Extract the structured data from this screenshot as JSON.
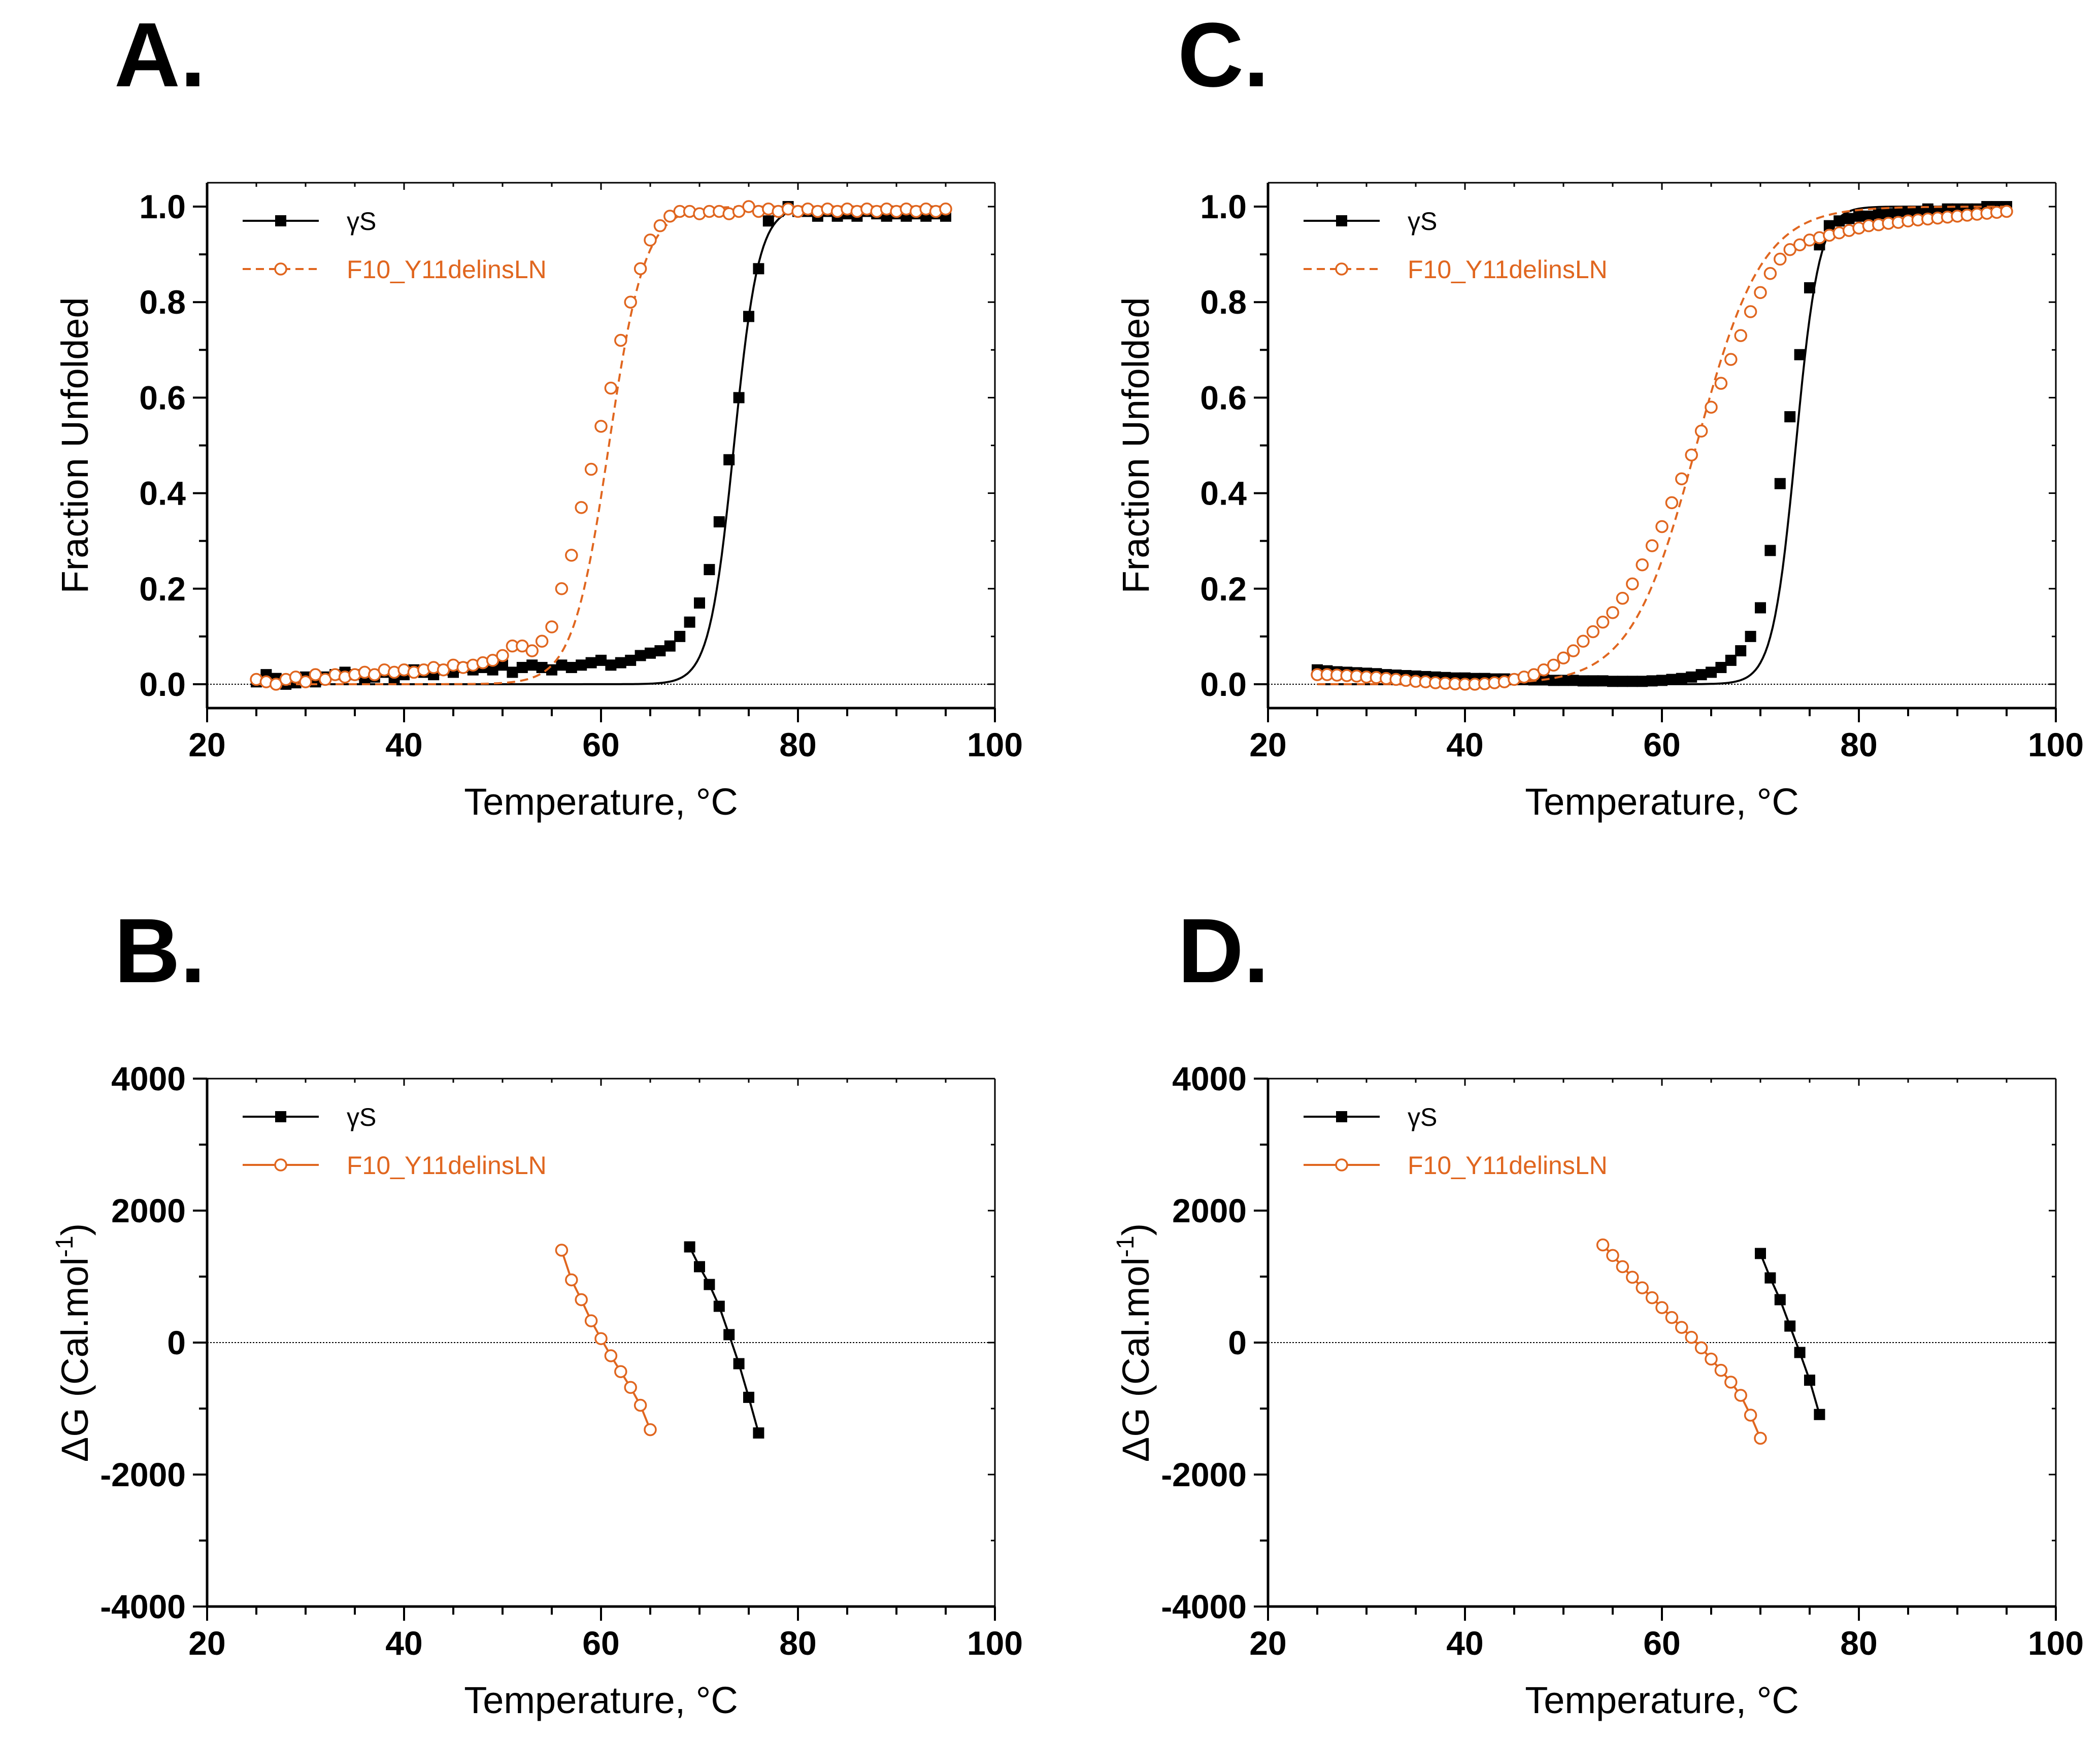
{
  "colors": {
    "wt": "#000000",
    "mutant": "#e0661f",
    "axis": "#000000"
  },
  "chart_data": [
    {
      "panel": "A.",
      "type": "line",
      "xlabel": "Temperature, °C",
      "ylabel": "Fraction Unfolded",
      "xlim": [
        20,
        100
      ],
      "ylim": [
        -0.05,
        1.05
      ],
      "xticks": [
        "20",
        "40",
        "60",
        "80",
        "100"
      ],
      "yticks": [
        "0.0",
        "0.2",
        "0.4",
        "0.6",
        "0.8",
        "1.0"
      ],
      "reference_line": 0,
      "legend_position": "top-left",
      "series": [
        {
          "name": "γS",
          "marker": "filled-square",
          "line": "solid",
          "color": "#000000",
          "fit": {
            "tm": 73.5,
            "k": 0.8
          },
          "x": [
            25,
            26,
            27,
            28,
            29,
            30,
            31,
            32,
            33,
            34,
            35,
            36,
            37,
            38,
            39,
            40,
            41,
            42,
            43,
            44,
            45,
            46,
            47,
            48,
            49,
            50,
            51,
            52,
            53,
            54,
            55,
            56,
            57,
            58,
            59,
            60,
            61,
            62,
            63,
            64,
            65,
            66,
            67,
            68,
            69,
            70,
            71,
            72,
            73,
            74,
            75,
            76,
            77,
            78,
            79,
            80,
            81,
            82,
            83,
            84,
            85,
            86,
            87,
            88,
            89,
            90,
            91,
            92,
            93,
            94,
            95
          ],
          "y": [
            0.005,
            0.02,
            0.012,
            0.0,
            0.003,
            0.015,
            0.005,
            0.015,
            0.02,
            0.025,
            0.02,
            0.01,
            0.015,
            0.025,
            0.01,
            0.02,
            0.03,
            0.025,
            0.02,
            0.03,
            0.025,
            0.035,
            0.03,
            0.035,
            0.03,
            0.04,
            0.025,
            0.035,
            0.04,
            0.035,
            0.03,
            0.04,
            0.035,
            0.04,
            0.045,
            0.05,
            0.04,
            0.045,
            0.05,
            0.06,
            0.065,
            0.07,
            0.08,
            0.1,
            0.13,
            0.17,
            0.24,
            0.34,
            0.47,
            0.6,
            0.77,
            0.87,
            0.97,
            0.99,
            1.0,
            0.99,
            0.99,
            0.98,
            0.99,
            0.98,
            0.985,
            0.98,
            0.99,
            0.985,
            0.98,
            0.985,
            0.98,
            0.985,
            0.98,
            0.985,
            0.98
          ]
        },
        {
          "name": "F10_Y11delinsLN",
          "marker": "open-circle",
          "line": "dashed",
          "color": "#e0661f",
          "fit": {
            "tm": 60.8,
            "k": 0.55
          },
          "x": [
            25,
            26,
            27,
            28,
            29,
            30,
            31,
            32,
            33,
            34,
            35,
            36,
            37,
            38,
            39,
            40,
            41,
            42,
            43,
            44,
            45,
            46,
            47,
            48,
            49,
            50,
            51,
            52,
            53,
            54,
            55,
            56,
            57,
            58,
            59,
            60,
            61,
            62,
            63,
            64,
            65,
            66,
            67,
            68,
            69,
            70,
            71,
            72,
            73,
            74,
            75,
            76,
            77,
            78,
            79,
            80,
            81,
            82,
            83,
            84,
            85,
            86,
            87,
            88,
            89,
            90,
            91,
            92,
            93,
            94,
            95
          ],
          "y": [
            0.01,
            0.005,
            0.0,
            0.01,
            0.015,
            0.005,
            0.02,
            0.01,
            0.02,
            0.015,
            0.02,
            0.025,
            0.02,
            0.03,
            0.025,
            0.03,
            0.025,
            0.03,
            0.035,
            0.03,
            0.04,
            0.035,
            0.04,
            0.045,
            0.05,
            0.06,
            0.08,
            0.08,
            0.07,
            0.09,
            0.12,
            0.2,
            0.27,
            0.37,
            0.45,
            0.54,
            0.62,
            0.72,
            0.8,
            0.87,
            0.93,
            0.96,
            0.98,
            0.99,
            0.99,
            0.985,
            0.99,
            0.99,
            0.985,
            0.99,
            1.0,
            0.99,
            0.995,
            0.99,
            0.995,
            0.99,
            0.995,
            0.99,
            0.995,
            0.99,
            0.995,
            0.99,
            0.995,
            0.99,
            0.995,
            0.99,
            0.995,
            0.99,
            0.995,
            0.99,
            0.995
          ]
        }
      ]
    },
    {
      "panel": "B.",
      "type": "line",
      "xlabel": "Temperature, °C",
      "ylabel_prefix": "ΔG (Cal.mol",
      "ylabel_sup": "-1",
      "ylabel_suffix": ")",
      "xlim": [
        20,
        100
      ],
      "ylim": [
        -4000,
        4000
      ],
      "xticks": [
        "20",
        "40",
        "60",
        "80",
        "100"
      ],
      "yticks": [
        "-4000",
        "-2000",
        "0",
        "2000",
        "4000"
      ],
      "reference_line": 0,
      "legend_position": "top-left",
      "series": [
        {
          "name": "γS",
          "marker": "filled-square",
          "line": "solid",
          "color": "#000000",
          "x": [
            69,
            70,
            71,
            72,
            73,
            74,
            75,
            76
          ],
          "y": [
            1450,
            1150,
            880,
            550,
            120,
            -320,
            -830,
            -1370
          ]
        },
        {
          "name": "F10_Y11delinsLN",
          "marker": "open-circle",
          "line": "solid",
          "color": "#e0661f",
          "x": [
            56,
            57,
            58,
            59,
            60,
            61,
            62,
            63,
            64,
            65
          ],
          "y": [
            1400,
            950,
            650,
            330,
            60,
            -200,
            -440,
            -680,
            -950,
            -1320
          ]
        }
      ]
    },
    {
      "panel": "C.",
      "type": "line",
      "xlabel": "Temperature, °C",
      "ylabel": "Fraction Unfolded",
      "xlim": [
        20,
        100
      ],
      "ylim": [
        -0.05,
        1.05
      ],
      "xticks": [
        "20",
        "40",
        "60",
        "80",
        "100"
      ],
      "yticks": [
        "0.0",
        "0.2",
        "0.4",
        "0.6",
        "0.8",
        "1.0"
      ],
      "reference_line": 0,
      "legend_position": "top-left",
      "series": [
        {
          "name": "γS",
          "marker": "filled-square",
          "line": "solid",
          "color": "#000000",
          "fit": {
            "tm": 73.6,
            "k": 0.85
          },
          "x": [
            25,
            26,
            27,
            28,
            29,
            30,
            31,
            32,
            33,
            34,
            35,
            36,
            37,
            38,
            39,
            40,
            41,
            42,
            43,
            44,
            45,
            46,
            47,
            48,
            49,
            50,
            51,
            52,
            53,
            54,
            55,
            56,
            57,
            58,
            59,
            60,
            61,
            62,
            63,
            64,
            65,
            66,
            67,
            68,
            69,
            70,
            71,
            72,
            73,
            74,
            75,
            76,
            77,
            78,
            79,
            80,
            81,
            82,
            83,
            84,
            85,
            86,
            87,
            88,
            89,
            90,
            91,
            92,
            93,
            94,
            95
          ],
          "y": [
            0.03,
            0.028,
            0.026,
            0.025,
            0.024,
            0.023,
            0.022,
            0.02,
            0.019,
            0.018,
            0.017,
            0.016,
            0.015,
            0.014,
            0.013,
            0.013,
            0.012,
            0.012,
            0.011,
            0.011,
            0.01,
            0.01,
            0.009,
            0.009,
            0.008,
            0.008,
            0.008,
            0.007,
            0.007,
            0.007,
            0.006,
            0.006,
            0.006,
            0.006,
            0.007,
            0.008,
            0.01,
            0.012,
            0.015,
            0.02,
            0.025,
            0.035,
            0.05,
            0.07,
            0.1,
            0.16,
            0.28,
            0.42,
            0.56,
            0.69,
            0.83,
            0.92,
            0.96,
            0.97,
            0.975,
            0.98,
            0.98,
            0.985,
            0.985,
            0.99,
            0.99,
            0.99,
            0.995,
            0.99,
            0.995,
            0.995,
            0.995,
            0.995,
            1.0,
            1.0,
            1.0
          ]
        },
        {
          "name": "F10_Y11delinsLN",
          "marker": "open-circle",
          "line": "dashed",
          "color": "#e0661f",
          "fit": {
            "tm": 63.5,
            "k": 0.3
          },
          "x": [
            25,
            26,
            27,
            28,
            29,
            30,
            31,
            32,
            33,
            34,
            35,
            36,
            37,
            38,
            39,
            40,
            41,
            42,
            43,
            44,
            45,
            46,
            47,
            48,
            49,
            50,
            51,
            52,
            53,
            54,
            55,
            56,
            57,
            58,
            59,
            60,
            61,
            62,
            63,
            64,
            65,
            66,
            67,
            68,
            69,
            70,
            71,
            72,
            73,
            74,
            75,
            76,
            77,
            78,
            79,
            80,
            81,
            82,
            83,
            84,
            85,
            86,
            87,
            88,
            89,
            90,
            91,
            92,
            93,
            94,
            95
          ],
          "y": [
            0.02,
            0.02,
            0.019,
            0.018,
            0.017,
            0.015,
            0.014,
            0.012,
            0.01,
            0.008,
            0.006,
            0.005,
            0.003,
            0.002,
            0.001,
            0.0,
            0.0,
            0.001,
            0.003,
            0.005,
            0.01,
            0.015,
            0.02,
            0.03,
            0.04,
            0.055,
            0.07,
            0.09,
            0.11,
            0.13,
            0.15,
            0.18,
            0.21,
            0.25,
            0.29,
            0.33,
            0.38,
            0.43,
            0.48,
            0.53,
            0.58,
            0.63,
            0.68,
            0.73,
            0.78,
            0.82,
            0.86,
            0.89,
            0.91,
            0.92,
            0.93,
            0.935,
            0.94,
            0.945,
            0.95,
            0.955,
            0.96,
            0.962,
            0.965,
            0.967,
            0.97,
            0.972,
            0.974,
            0.976,
            0.978,
            0.98,
            0.982,
            0.984,
            0.986,
            0.988,
            0.99
          ]
        }
      ]
    },
    {
      "panel": "D.",
      "type": "line",
      "xlabel": "Temperature, °C",
      "ylabel_prefix": "ΔG (Cal.mol",
      "ylabel_sup": "-1",
      "ylabel_suffix": ")",
      "xlim": [
        20,
        100
      ],
      "ylim": [
        -4000,
        4000
      ],
      "xticks": [
        "20",
        "40",
        "60",
        "80",
        "100"
      ],
      "yticks": [
        "-4000",
        "-2000",
        "0",
        "2000",
        "4000"
      ],
      "reference_line": 0,
      "legend_position": "top-left",
      "series": [
        {
          "name": "γS",
          "marker": "filled-square",
          "line": "solid",
          "color": "#000000",
          "x": [
            70,
            71,
            72,
            73,
            74,
            75,
            76
          ],
          "y": [
            1350,
            980,
            650,
            250,
            -150,
            -570,
            -1090
          ]
        },
        {
          "name": "F10_Y11delinsLN",
          "marker": "open-circle",
          "line": "solid",
          "color": "#e0661f",
          "x": [
            54,
            55,
            56,
            57,
            58,
            59,
            60,
            61,
            62,
            63,
            64,
            65,
            66,
            67,
            68,
            69,
            70
          ],
          "y": [
            1480,
            1320,
            1150,
            990,
            830,
            680,
            530,
            380,
            230,
            80,
            -80,
            -250,
            -420,
            -600,
            -800,
            -1100,
            -1450
          ]
        }
      ]
    }
  ]
}
